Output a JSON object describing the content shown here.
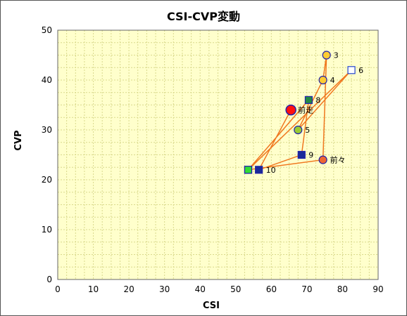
{
  "chart_data": {
    "type": "scatter",
    "title": "CSI-CVP変動",
    "xlabel": "CSI",
    "ylabel": "CVP",
    "xlim": [
      0,
      90
    ],
    "ylim": [
      0,
      50
    ],
    "xticks": [
      0,
      10,
      20,
      30,
      40,
      50,
      60,
      70,
      80,
      90
    ],
    "yticks": [
      0,
      10,
      20,
      30,
      40,
      50
    ],
    "grid": true,
    "background": "#ffffcc",
    "grid_color": "#d9d98c",
    "line_color": "#f07820",
    "points": [
      {
        "label": "",
        "x": 53.5,
        "y": 22,
        "shape": "square",
        "fill": "#33dd33",
        "stroke": "#2222aa"
      },
      {
        "label": "前々",
        "x": 74.5,
        "y": 24,
        "shape": "circle",
        "fill": "#ee6633",
        "stroke": "#2222aa"
      },
      {
        "label": "3",
        "x": 75.5,
        "y": 45,
        "shape": "circle",
        "fill": "#ffcc33",
        "stroke": "#2222aa"
      },
      {
        "label": "4",
        "x": 74.5,
        "y": 40,
        "shape": "circle",
        "fill": "#ffcc33",
        "stroke": "#2222aa"
      },
      {
        "label": "5",
        "x": 67.5,
        "y": 30,
        "shape": "circle",
        "fill": "#99cc33",
        "stroke": "#2222aa"
      },
      {
        "label": "6",
        "x": 82.5,
        "y": 42,
        "shape": "square",
        "fill": "#ffffff",
        "stroke": "#2244cc"
      },
      {
        "label": "",
        "x": 53.5,
        "y": 22,
        "shape": "square",
        "fill": "#33dd33",
        "stroke": "#2222aa"
      },
      {
        "label": "8",
        "x": 70.5,
        "y": 36,
        "shape": "square",
        "fill": "#228844",
        "stroke": "#2222aa"
      },
      {
        "label": "9",
        "x": 68.5,
        "y": 25,
        "shape": "square",
        "fill": "#1a2a99",
        "stroke": "#2222aa"
      },
      {
        "label": "10",
        "x": 56.5,
        "y": 22,
        "shape": "square",
        "fill": "#1a2a99",
        "stroke": "#2222aa"
      },
      {
        "label": "前走",
        "x": 65.5,
        "y": 34,
        "shape": "bigcircle",
        "fill": "#ff1111",
        "stroke": "#2222aa"
      }
    ]
  }
}
